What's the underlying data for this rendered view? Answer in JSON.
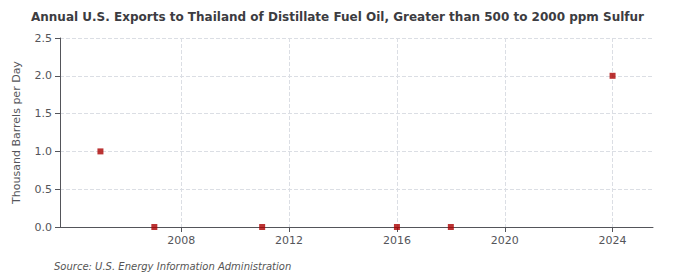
{
  "chart_data": {
    "type": "scatter",
    "title": "Annual U.S. Exports to Thailand of Distillate Fuel Oil, Greater than 500 to 2000 ppm Sulfur",
    "ylabel": "Thousand Barrels per Day",
    "annotation": "Source: U.S. Energy Information Administration",
    "x": [
      2005,
      2007,
      2011,
      2016,
      2018,
      2024
    ],
    "values": [
      1.0,
      0.0,
      0.0,
      0.0,
      0.0,
      2.0
    ],
    "color": "#aa0000",
    "marker": "square",
    "xlim": [
      2003.5,
      2025.5
    ],
    "ylim": [
      0,
      2.5
    ],
    "xticks": [
      2008,
      2012,
      2016,
      2020,
      2024
    ],
    "yticks": [
      {
        "value": 0.0,
        "label": "0.0"
      },
      0.5,
      {
        "value": 1.0,
        "label": "1.0"
      },
      1.5,
      {
        "value": 2.0,
        "label": "2.0"
      },
      2.5
    ],
    "grid": true
  }
}
